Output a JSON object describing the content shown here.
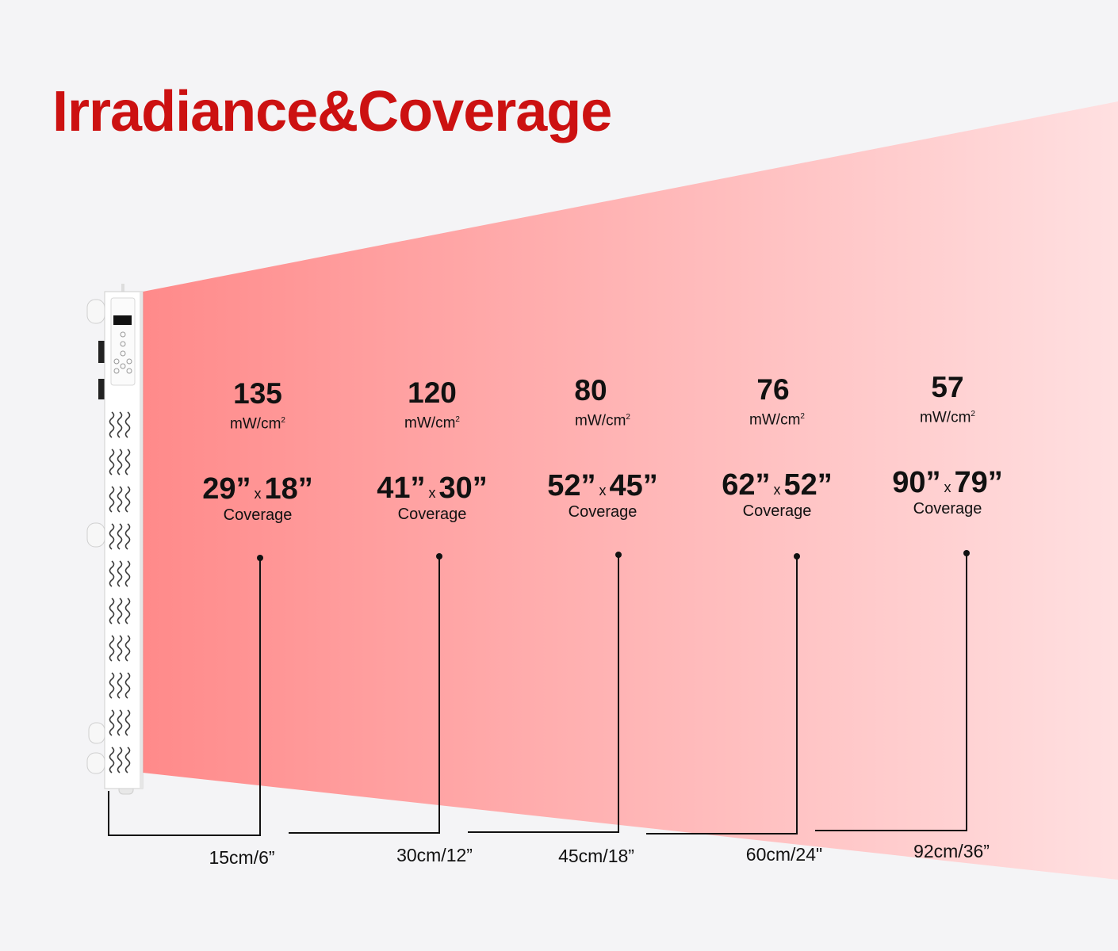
{
  "title": "Irradiance&Coverage",
  "colors": {
    "title": "#cc1111",
    "beam_near": "#ff8a8a",
    "beam_far": "#ffe0e1",
    "panel": "#ffffff"
  },
  "icons": {
    "heat": "wavy-heat-icon",
    "display": "lcd-display-icon",
    "button": "control-button-icon"
  },
  "measurements": [
    {
      "irradiance": "135",
      "unit": "mW/cm",
      "unit_sup": "2",
      "width": "29”",
      "x": "x",
      "height": "18”",
      "coverage": "Coverage",
      "distance": "15cm/6”"
    },
    {
      "irradiance": "120",
      "unit": "mW/cm",
      "unit_sup": "2",
      "width": "41”",
      "x": "x",
      "height": "30”",
      "coverage": "Coverage",
      "distance": "30cm/12”"
    },
    {
      "irradiance": "80",
      "unit": "mW/cm",
      "unit_sup": "2",
      "width": "52”",
      "x": "x",
      "height": "45”",
      "coverage": "Coverage",
      "distance": "45cm/18”"
    },
    {
      "irradiance": "76",
      "unit": "mW/cm",
      "unit_sup": "2",
      "width": "62”",
      "x": "x",
      "height": "52”",
      "coverage": "Coverage",
      "distance": "60cm/24\""
    },
    {
      "irradiance": "57",
      "unit": "mW/cm",
      "unit_sup": "2",
      "width": "90”",
      "x": "x",
      "height": "79”",
      "coverage": "Coverage",
      "distance": "92cm/36”"
    }
  ]
}
